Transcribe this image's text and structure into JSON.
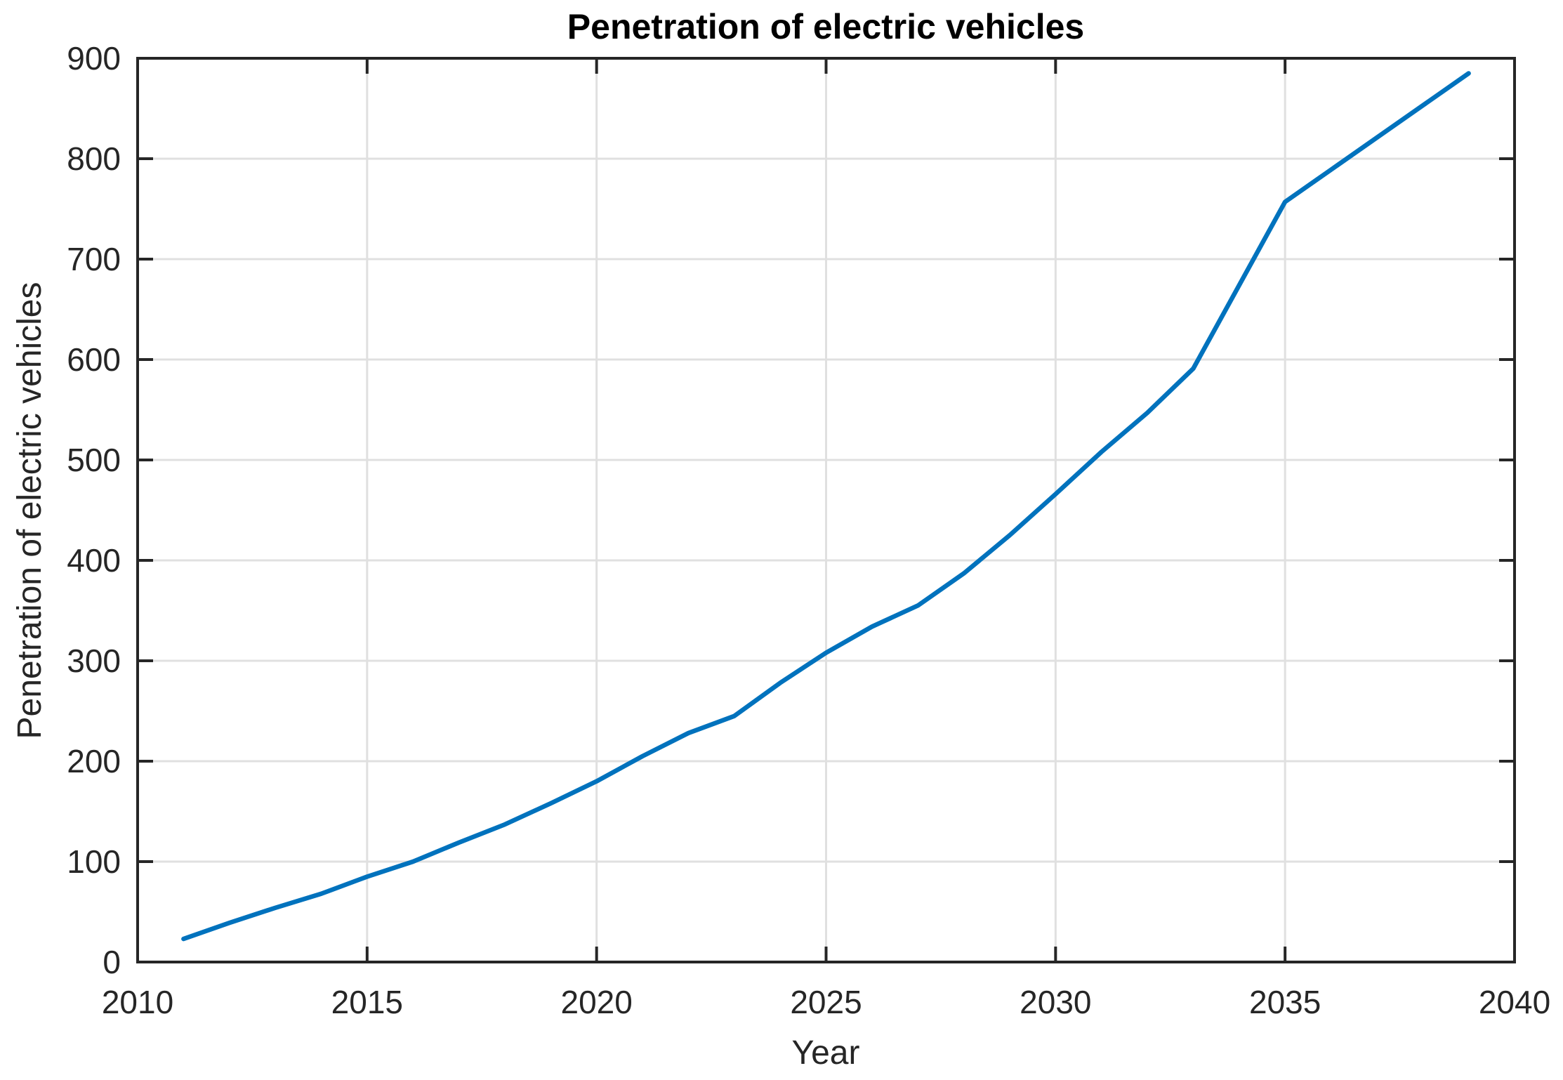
{
  "chart_data": {
    "type": "line",
    "title": "Penetration of electric vehicles",
    "xlabel": "Year",
    "ylabel": "Penetration of electric vehicles",
    "x": [
      2011,
      2012,
      2013,
      2014,
      2015,
      2016,
      2017,
      2018,
      2019,
      2020,
      2021,
      2022,
      2023,
      2024,
      2025,
      2026,
      2027,
      2028,
      2029,
      2030,
      2031,
      2032,
      2033,
      2034,
      2035,
      2036,
      2037,
      2038,
      2039
    ],
    "y": [
      23,
      39,
      54,
      68,
      85,
      100,
      119,
      137,
      158,
      180,
      205,
      228,
      245,
      278,
      308,
      334,
      355,
      387,
      425,
      466,
      508,
      547,
      591,
      674,
      757,
      789,
      821,
      853,
      885
    ],
    "xlim": [
      2010,
      2040
    ],
    "ylim": [
      0,
      900
    ],
    "xticks": [
      2010,
      2015,
      2020,
      2025,
      2030,
      2035,
      2040
    ],
    "yticks": [
      0,
      100,
      200,
      300,
      400,
      500,
      600,
      700,
      800,
      900
    ],
    "grid": true,
    "legend_position": "none",
    "line_color": "#0072BD",
    "axis_color": "#262626",
    "grid_color": "#e0e0e0",
    "background_color": "#ffffff"
  }
}
